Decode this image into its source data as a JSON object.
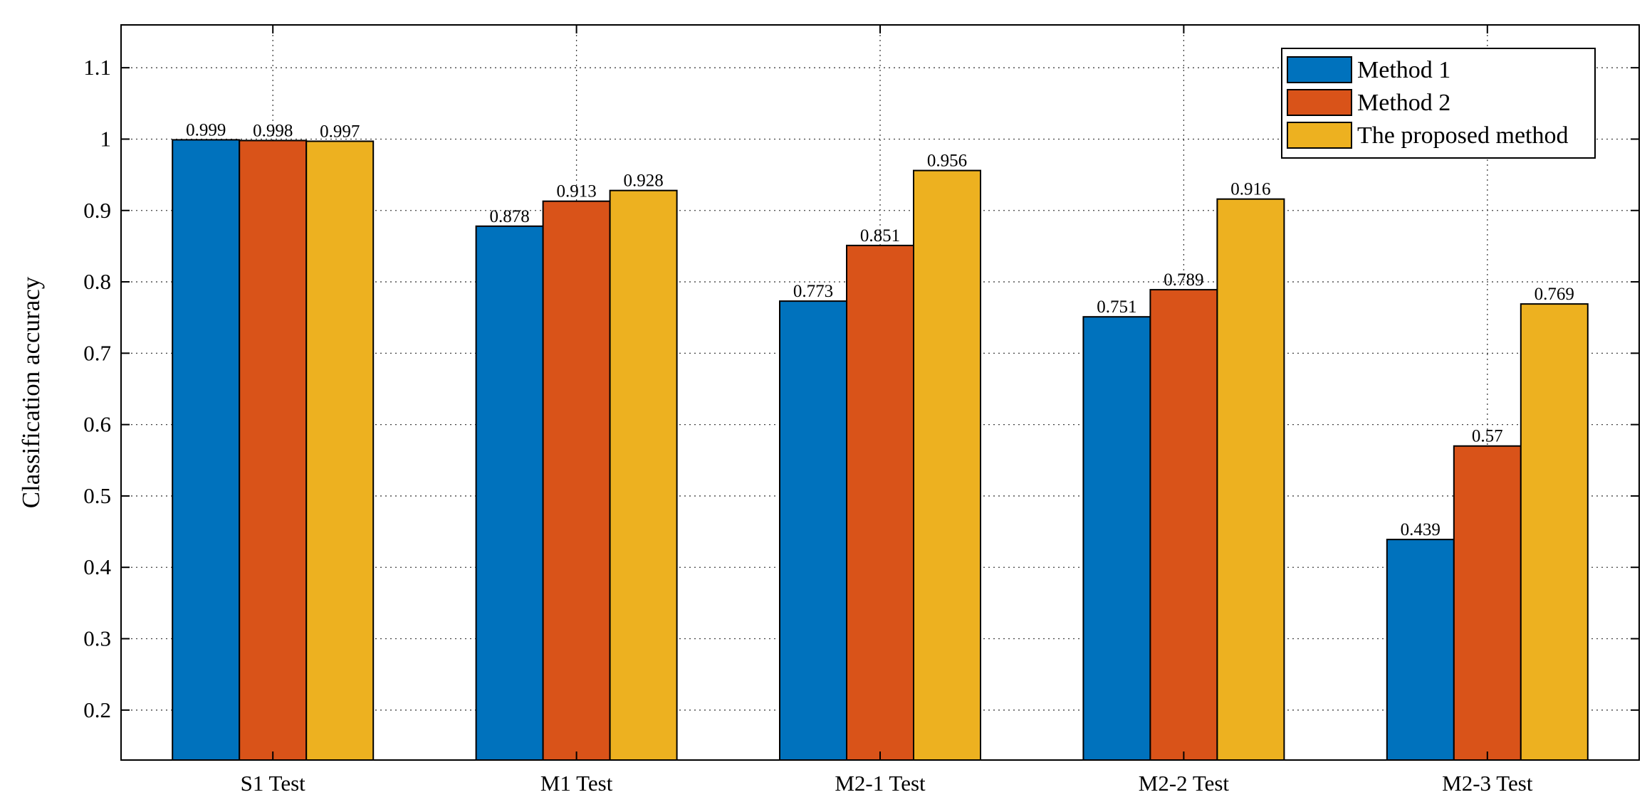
{
  "chart_data": {
    "type": "bar",
    "title": "",
    "xlabel": "",
    "ylabel": "Classification accuracy",
    "categories": [
      "S1 Test",
      "M1 Test",
      "M2-1 Test",
      "M2-2 Test",
      "M2-3 Test"
    ],
    "series": [
      {
        "name": "Method 1",
        "color": "#0072BD",
        "values": [
          0.999,
          0.878,
          0.773,
          0.751,
          0.439
        ],
        "labels": [
          "0.999",
          "0.878",
          "0.773",
          "0.751",
          "0.439"
        ]
      },
      {
        "name": "Method 2",
        "color": "#D95319",
        "values": [
          0.998,
          0.913,
          0.851,
          0.789,
          0.57
        ],
        "labels": [
          "0.998",
          "0.913",
          "0.851",
          "0.789",
          "0.57"
        ]
      },
      {
        "name": "The proposed method",
        "color": "#EDB120",
        "values": [
          0.997,
          0.928,
          0.956,
          0.916,
          0.769
        ],
        "labels": [
          "0.997",
          "0.928",
          "0.956",
          "0.916",
          "0.769"
        ]
      }
    ],
    "ylim": [
      0.13,
      1.16
    ],
    "yticks": [
      0.2,
      0.3,
      0.4,
      0.5,
      0.6,
      0.7,
      0.8,
      0.9,
      1.0,
      1.1
    ],
    "ytick_labels": [
      "0.2",
      "0.3",
      "0.4",
      "0.5",
      "0.6",
      "0.7",
      "0.8",
      "0.9",
      "1",
      "1.1"
    ],
    "grid": true,
    "legend_position": "top-right"
  }
}
